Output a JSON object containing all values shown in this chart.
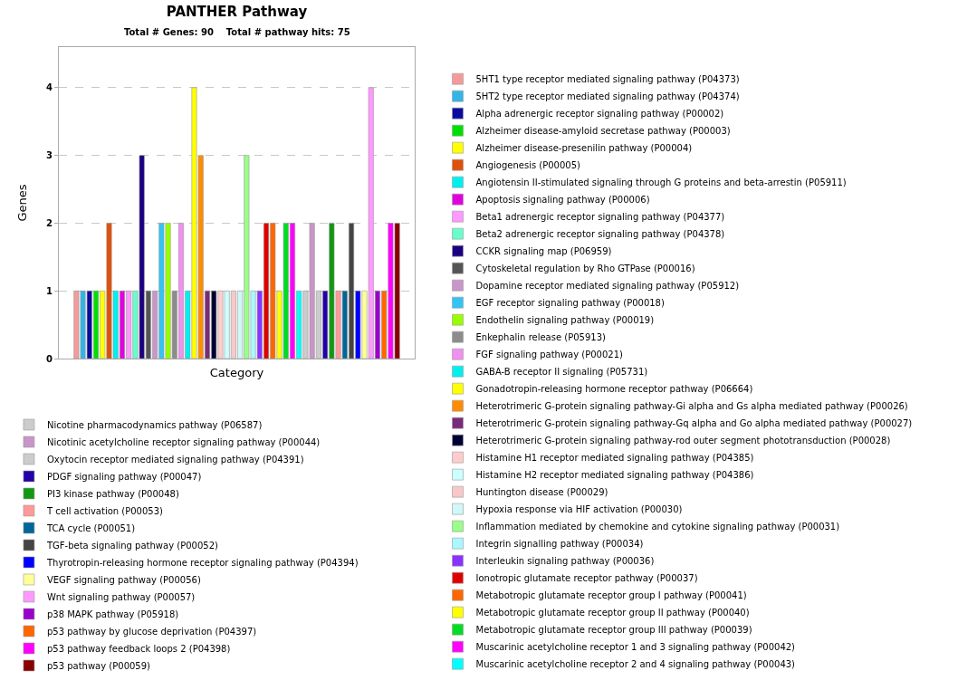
{
  "chart_data": {
    "type": "bar",
    "title": "PANTHER Pathway",
    "subtitle": "Total # Genes: 90    Total # pathway hits: 75",
    "xlabel": "Category",
    "ylabel": "Genes",
    "categories": [
      null
    ],
    "series": [
      {
        "name": "5HT1 type receptor mediated signaling pathway (P04373)",
        "color": "#f49a9a",
        "values": [
          1
        ]
      },
      {
        "name": "5HT2 type receptor mediated signaling pathway (P04374)",
        "color": "#33b5e5",
        "values": [
          1
        ]
      },
      {
        "name": "Alpha adrenergic receptor signaling pathway (P00002)",
        "color": "#0a0aa0",
        "values": [
          1
        ]
      },
      {
        "name": "Alzheimer disease-amyloid secretase pathway (P00003)",
        "color": "#00e000",
        "values": [
          1
        ]
      },
      {
        "name": "Alzheimer disease-presenilin pathway (P00004)",
        "color": "#ffff00",
        "values": [
          1
        ]
      },
      {
        "name": "Angiogenesis (P00005)",
        "color": "#e0500a",
        "values": [
          2
        ]
      },
      {
        "name": "Angiotensin II-stimulated signaling through G proteins and beta-arrestin (P05911)",
        "color": "#00f0f0",
        "values": [
          1
        ]
      },
      {
        "name": "Apoptosis signaling pathway (P00006)",
        "color": "#e000e0",
        "values": [
          1
        ]
      },
      {
        "name": "Beta1 adrenergic receptor signaling pathway (P04377)",
        "color": "#ff99ff",
        "values": [
          1
        ]
      },
      {
        "name": "Beta2 adrenergic receptor signaling pathway (P04378)",
        "color": "#66ffcc",
        "values": [
          1
        ]
      },
      {
        "name": "CCKR signaling map (P06959)",
        "color": "#1a0080",
        "values": [
          3
        ]
      },
      {
        "name": "Cytoskeletal regulation by Rho GTPase (P00016)",
        "color": "#555555",
        "values": [
          1
        ]
      },
      {
        "name": "Dopamine receptor mediated signaling pathway (P05912)",
        "color": "#c896c8",
        "values": [
          1
        ]
      },
      {
        "name": "EGF receptor signaling pathway (P00018)",
        "color": "#33c4f4",
        "values": [
          2
        ]
      },
      {
        "name": "Endothelin signaling pathway (P00019)",
        "color": "#99ff00",
        "values": [
          2
        ]
      },
      {
        "name": "Enkephalin release (P05913)",
        "color": "#8c8c8c",
        "values": [
          1
        ]
      },
      {
        "name": "FGF signaling pathway (P00021)",
        "color": "#f090f0",
        "values": [
          2
        ]
      },
      {
        "name": "GABA-B receptor II signaling (P05731)",
        "color": "#00f0f0",
        "values": [
          1
        ]
      },
      {
        "name": "Gonadotropin-releasing hormone receptor pathway (P06664)",
        "color": "#ffff00",
        "values": [
          4
        ]
      },
      {
        "name": "Heterotrimeric G-protein signaling pathway-Gi alpha and Gs alpha mediated pathway (P00026)",
        "color": "#ff8c00",
        "values": [
          3
        ]
      },
      {
        "name": "Heterotrimeric G-protein signaling pathway-Gq alpha and Go alpha mediated pathway (P00027)",
        "color": "#7a2a7a",
        "values": [
          1
        ]
      },
      {
        "name": "Heterotrimeric G-protein signaling pathway-rod outer segment phototransduction (P00028)",
        "color": "#000033",
        "values": [
          1
        ]
      },
      {
        "name": "Histamine H1 receptor mediated signaling pathway (P04385)",
        "color": "#ffcccc",
        "values": [
          1
        ]
      },
      {
        "name": "Histamine H2 receptor mediated signaling pathway (P04386)",
        "color": "#ccffff",
        "values": [
          1
        ]
      },
      {
        "name": "Huntington disease (P00029)",
        "color": "#f8c8c8",
        "values": [
          1
        ]
      },
      {
        "name": "Hypoxia response via HIF activation (P00030)",
        "color": "#d0f8f8",
        "values": [
          1
        ]
      },
      {
        "name": "Inflammation mediated by chemokine and cytokine signaling pathway (P00031)",
        "color": "#99ff88",
        "values": [
          3
        ]
      },
      {
        "name": "Integrin signalling pathway (P00034)",
        "color": "#aaf8ff",
        "values": [
          1
        ]
      },
      {
        "name": "Interleukin signaling pathway (P00036)",
        "color": "#8833ff",
        "values": [
          1
        ]
      },
      {
        "name": "Ionotropic glutamate receptor pathway (P00037)",
        "color": "#e00000",
        "values": [
          2
        ]
      },
      {
        "name": "Metabotropic glutamate receptor group I pathway (P00041)",
        "color": "#ff6600",
        "values": [
          2
        ]
      },
      {
        "name": "Metabotropic glutamate receptor group II pathway (P00040)",
        "color": "#ffff00",
        "values": [
          1
        ]
      },
      {
        "name": "Metabotropic glutamate receptor group III pathway (P00039)",
        "color": "#00dd22",
        "values": [
          2
        ]
      },
      {
        "name": "Muscarinic acetylcholine receptor 1 and 3 signaling pathway (P00042)",
        "color": "#ff00ff",
        "values": [
          2
        ]
      },
      {
        "name": "Muscarinic acetylcholine receptor 2 and 4 signaling pathway (P00043)",
        "color": "#00ffff",
        "values": [
          1
        ]
      },
      {
        "name": "Nicotine pharmacodynamics pathway (P06587)",
        "color": "#cccccc",
        "values": [
          1
        ]
      },
      {
        "name": "Nicotinic acetylcholine receptor signaling pathway (P00044)",
        "color": "#c896c8",
        "values": [
          2
        ]
      },
      {
        "name": "Oxytocin receptor mediated signaling pathway (P04391)",
        "color": "#cccccc",
        "values": [
          1
        ]
      },
      {
        "name": "PDGF signaling pathway (P00047)",
        "color": "#2200aa",
        "values": [
          1
        ]
      },
      {
        "name": "PI3 kinase pathway (P00048)",
        "color": "#119911",
        "values": [
          2
        ]
      },
      {
        "name": "T cell activation (P00053)",
        "color": "#ff9999",
        "values": [
          1
        ]
      },
      {
        "name": "TCA cycle (P00051)",
        "color": "#006699",
        "values": [
          1
        ]
      },
      {
        "name": "TGF-beta signaling pathway (P00052)",
        "color": "#444444",
        "values": [
          2
        ]
      },
      {
        "name": "Thyrotropin-releasing hormone receptor signaling pathway (P04394)",
        "color": "#0000ff",
        "values": [
          1
        ]
      },
      {
        "name": "VEGF signaling pathway (P00056)",
        "color": "#ffff99",
        "values": [
          1
        ]
      },
      {
        "name": "Wnt signaling pathway (P00057)",
        "color": "#ff99ff",
        "values": [
          4
        ]
      },
      {
        "name": "p38 MAPK pathway (P05918)",
        "color": "#9900cc",
        "values": [
          1
        ]
      },
      {
        "name": "p53 pathway by glucose deprivation (P04397)",
        "color": "#ff6600",
        "values": [
          1
        ]
      },
      {
        "name": "p53 pathway feedback loops 2 (P04398)",
        "color": "#ff00ff",
        "values": [
          2
        ]
      },
      {
        "name": "p53 pathway (P00059)",
        "color": "#880000",
        "values": [
          2
        ]
      }
    ],
    "ylim": [
      0,
      4.6
    ],
    "yticks": [
      0,
      1,
      2,
      3,
      4
    ],
    "grid": "y",
    "legend": "right"
  }
}
